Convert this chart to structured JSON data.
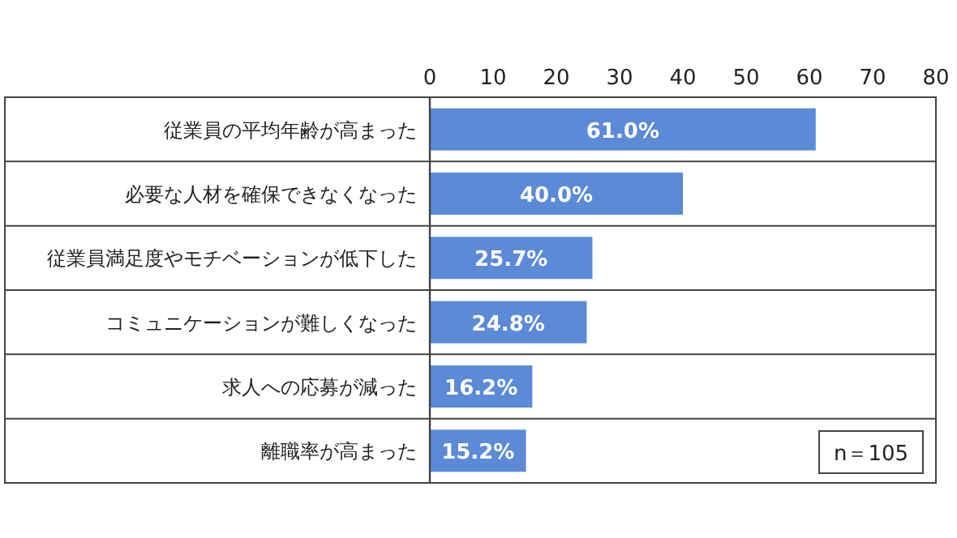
{
  "chart_data": {
    "type": "bar",
    "orientation": "horizontal",
    "categories": [
      "従業員の平均年齢が高まった",
      "必要な人材を確保できなくなった",
      "従業員満足度やモチベーションが低下した",
      "コミュニケーションが難しくなった",
      "求人への応募が減った",
      "離職率が高まった"
    ],
    "values": [
      61.0,
      40.0,
      25.7,
      24.8,
      16.2,
      15.2
    ],
    "value_labels": [
      "61.0%",
      "40.0%",
      "25.7%",
      "24.8%",
      "16.2%",
      "15.2%"
    ],
    "color": "#5b8ad7",
    "xlim": [
      0,
      80
    ],
    "xticks": [
      0,
      10,
      20,
      30,
      40,
      50,
      60,
      70,
      80
    ],
    "annotations": [
      "n＝105"
    ]
  }
}
